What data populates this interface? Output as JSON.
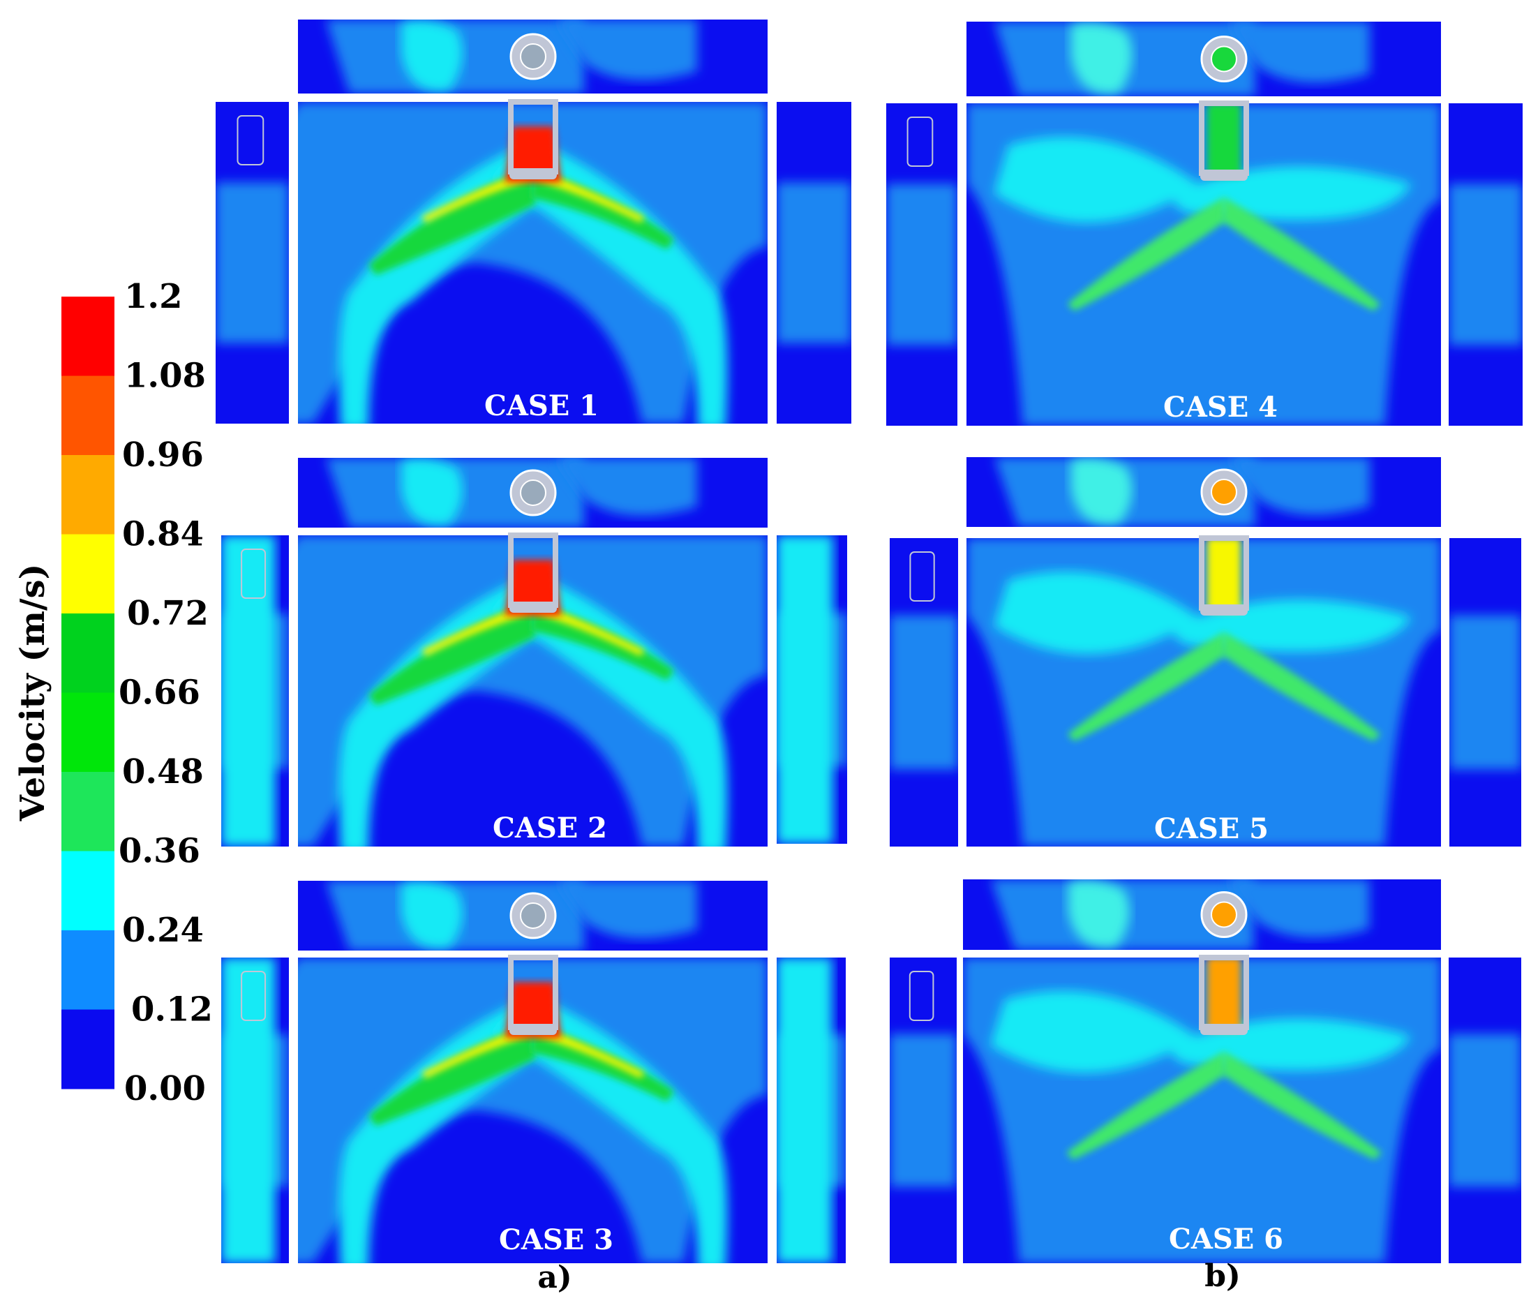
{
  "colorbar": {
    "title": "Velocity (m/s)",
    "ticks": [
      "1.2",
      "1.08",
      "0.96",
      "0.84",
      "0.72",
      "0.66",
      "0.48",
      "0.36",
      "0.24",
      "0.12",
      "0.00"
    ],
    "colors": [
      "#ff0000",
      "#ff5500",
      "#ffaa00",
      "#ffff00",
      "#00d21e",
      "#00e60a",
      "#1ee65a",
      "#00ffff",
      "#0f8cff",
      "#0a0af0"
    ]
  },
  "panels": [
    {
      "case_label": "CASE 1",
      "jet": "split-strong"
    },
    {
      "case_label": "CASE 4",
      "jet": "column-mild"
    },
    {
      "case_label": "CASE 2",
      "jet": "split-strong"
    },
    {
      "case_label": "CASE 5",
      "jet": "column-yellow"
    },
    {
      "case_label": "CASE 3",
      "jet": "split-strong"
    },
    {
      "case_label": "CASE 6",
      "jet": "column-orange"
    }
  ],
  "column_labels": [
    "a)",
    "b)"
  ]
}
